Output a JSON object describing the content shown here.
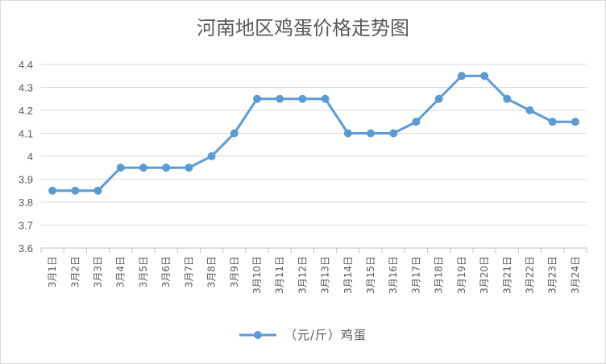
{
  "chart_data": {
    "type": "line",
    "title": "河南地区鸡蛋价格走势图",
    "categories": [
      "3月1日",
      "3月2日",
      "3月3日",
      "3月4日",
      "3月5日",
      "3月6日",
      "3月7日",
      "3月8日",
      "3月9日",
      "3月10日",
      "3月11日",
      "3月12日",
      "3月13日",
      "3月14日",
      "3月15日",
      "3月16日",
      "3月17日",
      "3月18日",
      "3月19日",
      "3月20日",
      "3月21日",
      "3月22日",
      "3月23日",
      "3月24日"
    ],
    "series": [
      {
        "name": "（元/斤）鸡蛋",
        "color": "#5b9bd5",
        "values": [
          3.85,
          3.85,
          3.85,
          3.95,
          3.95,
          3.95,
          3.95,
          4.0,
          4.1,
          4.25,
          4.25,
          4.25,
          4.25,
          4.1,
          4.1,
          4.1,
          4.15,
          4.25,
          4.35,
          4.35,
          4.25,
          4.2,
          4.15,
          4.15
        ]
      }
    ],
    "y_ticks": [
      "3.6",
      "3.7",
      "3.8",
      "3.9",
      "4",
      "4.1",
      "4.2",
      "4.3",
      "4.4"
    ],
    "ylim": [
      3.6,
      4.4
    ],
    "grid": true,
    "legend_position": "bottom"
  }
}
